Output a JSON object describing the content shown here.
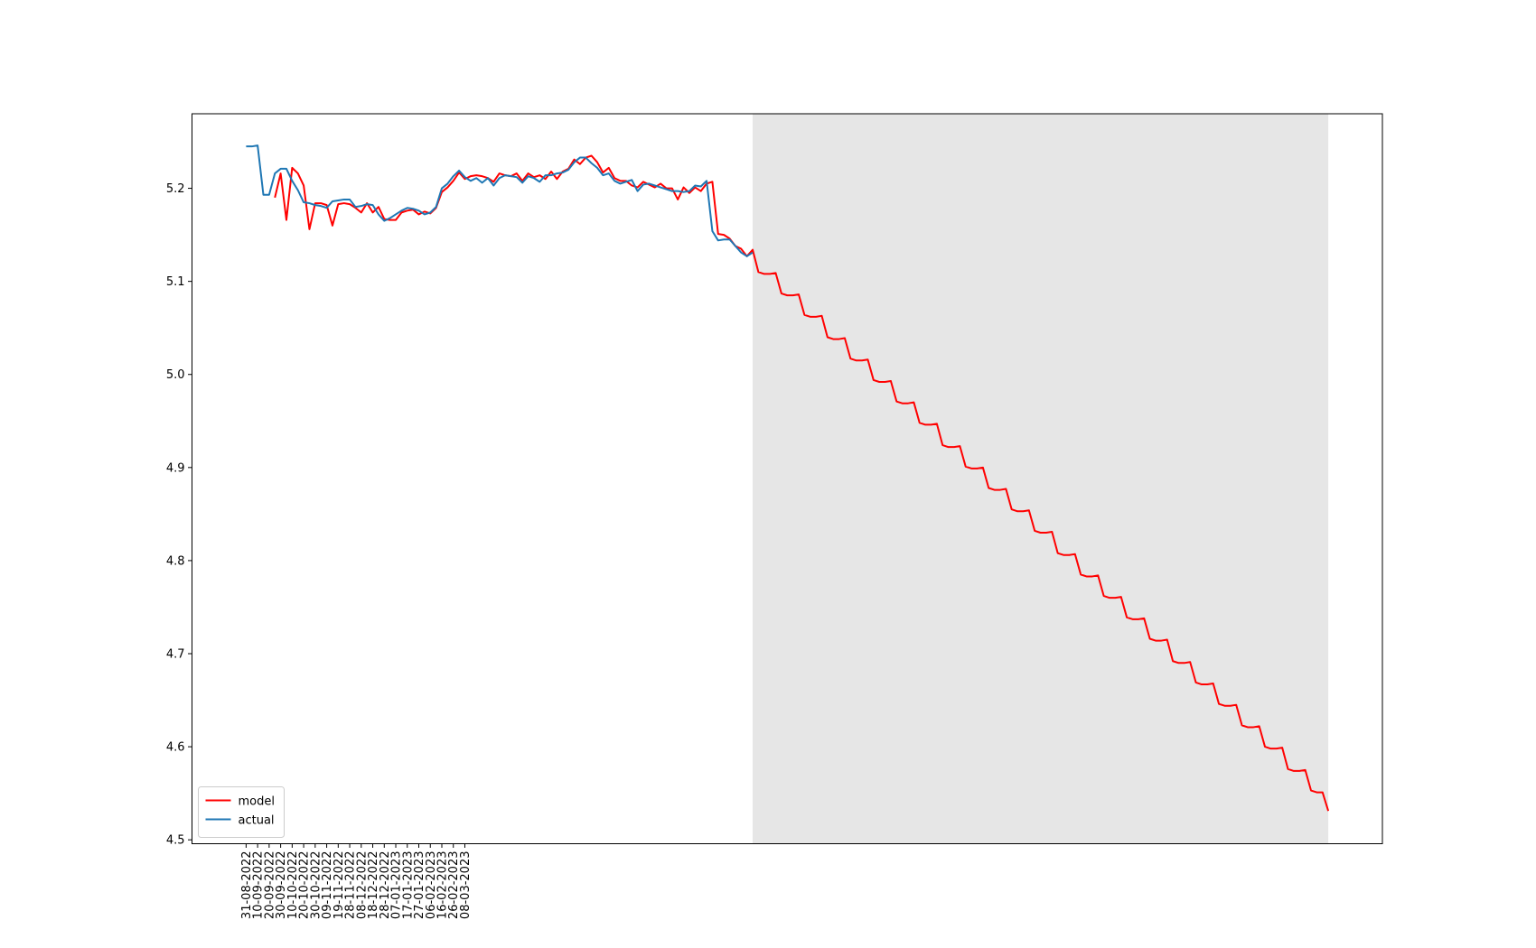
{
  "chart_data": {
    "type": "line",
    "xlim": [
      -9.4,
      197.4
    ],
    "ylim": [
      4.4958,
      5.2801
    ],
    "xticks": [
      {
        "value": 0,
        "label": "31-08-2022"
      },
      {
        "value": 2,
        "label": "10-09-2022"
      },
      {
        "value": 4,
        "label": "20-09-2022"
      },
      {
        "value": 6,
        "label": "30-09-2022"
      },
      {
        "value": 8,
        "label": "10-10-2022"
      },
      {
        "value": 10,
        "label": "20-10-2022"
      },
      {
        "value": 12,
        "label": "30-10-2022"
      },
      {
        "value": 14,
        "label": "09-11-2022"
      },
      {
        "value": 16,
        "label": "19-11-2022"
      },
      {
        "value": 18,
        "label": "28-11-2022"
      },
      {
        "value": 20,
        "label": "08-12-2022"
      },
      {
        "value": 22,
        "label": "18-12-2022"
      },
      {
        "value": 24,
        "label": "28-12-2022"
      },
      {
        "value": 26,
        "label": "07-01-2023"
      },
      {
        "value": 28,
        "label": "17-01-2023"
      },
      {
        "value": 30,
        "label": "27-01-2023"
      },
      {
        "value": 32,
        "label": "06-02-2023"
      },
      {
        "value": 34,
        "label": "16-02-2023"
      },
      {
        "value": 36,
        "label": "26-02-2023"
      },
      {
        "value": 38,
        "label": "08-03-2023"
      }
    ],
    "yticks": [
      4.5,
      4.6,
      4.7,
      4.8,
      4.9,
      {
        "value": 5,
        "label": "5.0"
      },
      5.1,
      5.2
    ],
    "shaded_span": [
      88,
      188
    ],
    "shaded_color": "#e6e6e6",
    "legend": "lower left",
    "series": [
      {
        "name": "model",
        "color": "#ff0000",
        "values": [
          null,
          null,
          null,
          null,
          null,
          5.19,
          5.216,
          5.166,
          5.222,
          5.216,
          5.203,
          5.156,
          5.184,
          5.184,
          5.182,
          5.16,
          5.183,
          5.184,
          5.183,
          5.179,
          5.174,
          5.184,
          5.174,
          5.18,
          5.167,
          5.166,
          5.166,
          5.174,
          5.176,
          5.177,
          5.172,
          5.175,
          5.173,
          5.179,
          5.196,
          5.201,
          5.208,
          5.217,
          5.21,
          5.213,
          5.214,
          5.213,
          5.211,
          5.207,
          5.216,
          5.214,
          5.213,
          5.216,
          5.208,
          5.216,
          5.212,
          5.214,
          5.21,
          5.218,
          5.21,
          5.218,
          5.221,
          5.231,
          5.226,
          5.233,
          5.235,
          5.228,
          5.217,
          5.222,
          5.211,
          5.208,
          5.208,
          5.203,
          5.201,
          5.207,
          5.204,
          5.201,
          5.205,
          5.2,
          5.2,
          5.188,
          5.201,
          5.195,
          5.201,
          5.197,
          5.205,
          5.207,
          5.151,
          5.15,
          5.146,
          5.138,
          5.135,
          5.127,
          5.134,
          5.11,
          5.108,
          5.108,
          5.109,
          5.087,
          5.085,
          5.085,
          5.086,
          5.064,
          5.062,
          5.062,
          5.063,
          5.04,
          5.038,
          5.038,
          5.039,
          5.017,
          5.015,
          5.015,
          5.016,
          4.994,
          4.992,
          4.992,
          4.993,
          4.971,
          4.969,
          4.969,
          4.97,
          4.948,
          4.946,
          4.946,
          4.947,
          4.924,
          4.922,
          4.922,
          4.923,
          4.901,
          4.899,
          4.899,
          4.9,
          4.878,
          4.876,
          4.876,
          4.877,
          4.855,
          4.853,
          4.853,
          4.854,
          4.832,
          4.83,
          4.83,
          4.831,
          4.808,
          4.806,
          4.806,
          4.807,
          4.785,
          4.783,
          4.783,
          4.784,
          4.762,
          4.76,
          4.76,
          4.761,
          4.739,
          4.737,
          4.737,
          4.738,
          4.716,
          4.714,
          4.714,
          4.715,
          4.692,
          4.69,
          4.69,
          4.691,
          4.669,
          4.667,
          4.667,
          4.668,
          4.646,
          4.644,
          4.644,
          4.645,
          4.623,
          4.621,
          4.621,
          4.622,
          4.6,
          4.598,
          4.598,
          4.599,
          4.576,
          4.574,
          4.574,
          4.575,
          4.553,
          4.551,
          4.551,
          4.531
        ]
      },
      {
        "name": "actual",
        "color": "#1f77b4",
        "values": [
          5.245,
          5.245,
          5.246,
          5.193,
          5.193,
          5.216,
          5.221,
          5.221,
          5.208,
          5.198,
          5.185,
          5.184,
          5.182,
          5.181,
          5.179,
          5.186,
          5.187,
          5.188,
          5.188,
          5.18,
          5.181,
          5.183,
          5.182,
          5.172,
          5.165,
          5.168,
          5.172,
          5.176,
          5.179,
          5.178,
          5.176,
          5.172,
          5.174,
          5.18,
          5.2,
          5.205,
          5.213,
          5.219,
          5.212,
          5.208,
          5.211,
          5.206,
          5.211,
          5.203,
          5.211,
          5.214,
          5.213,
          5.212,
          5.206,
          5.213,
          5.211,
          5.207,
          5.214,
          5.214,
          5.216,
          5.217,
          5.22,
          5.228,
          5.233,
          5.233,
          5.227,
          5.222,
          5.214,
          5.216,
          5.208,
          5.205,
          5.207,
          5.209,
          5.197,
          5.204,
          5.205,
          5.203,
          5.201,
          5.199,
          5.197,
          5.197,
          5.196,
          5.197,
          5.203,
          5.202,
          5.208,
          5.154,
          5.144,
          5.145,
          5.145,
          5.138,
          5.131,
          5.127,
          5.131,
          null,
          null,
          null,
          null,
          null,
          null,
          null,
          null,
          null,
          null,
          null,
          null,
          null,
          null,
          null,
          null,
          null,
          null,
          null,
          null,
          null,
          null,
          null,
          null,
          null,
          null,
          null,
          null,
          null,
          null,
          null,
          null,
          null,
          null,
          null,
          null,
          null,
          null,
          null,
          null,
          null,
          null,
          null,
          null,
          null,
          null,
          null,
          null,
          null,
          null,
          null,
          null,
          null,
          null,
          null,
          null,
          null,
          null,
          null,
          null,
          null,
          null,
          null,
          null,
          null,
          null,
          null,
          null,
          null,
          null,
          null,
          null,
          null,
          null,
          null,
          null,
          null,
          null,
          null,
          null,
          null,
          null,
          null,
          null,
          null,
          null,
          null,
          null,
          null,
          null,
          null,
          null,
          null,
          null,
          null,
          null,
          null,
          null,
          null,
          null
        ]
      }
    ]
  }
}
